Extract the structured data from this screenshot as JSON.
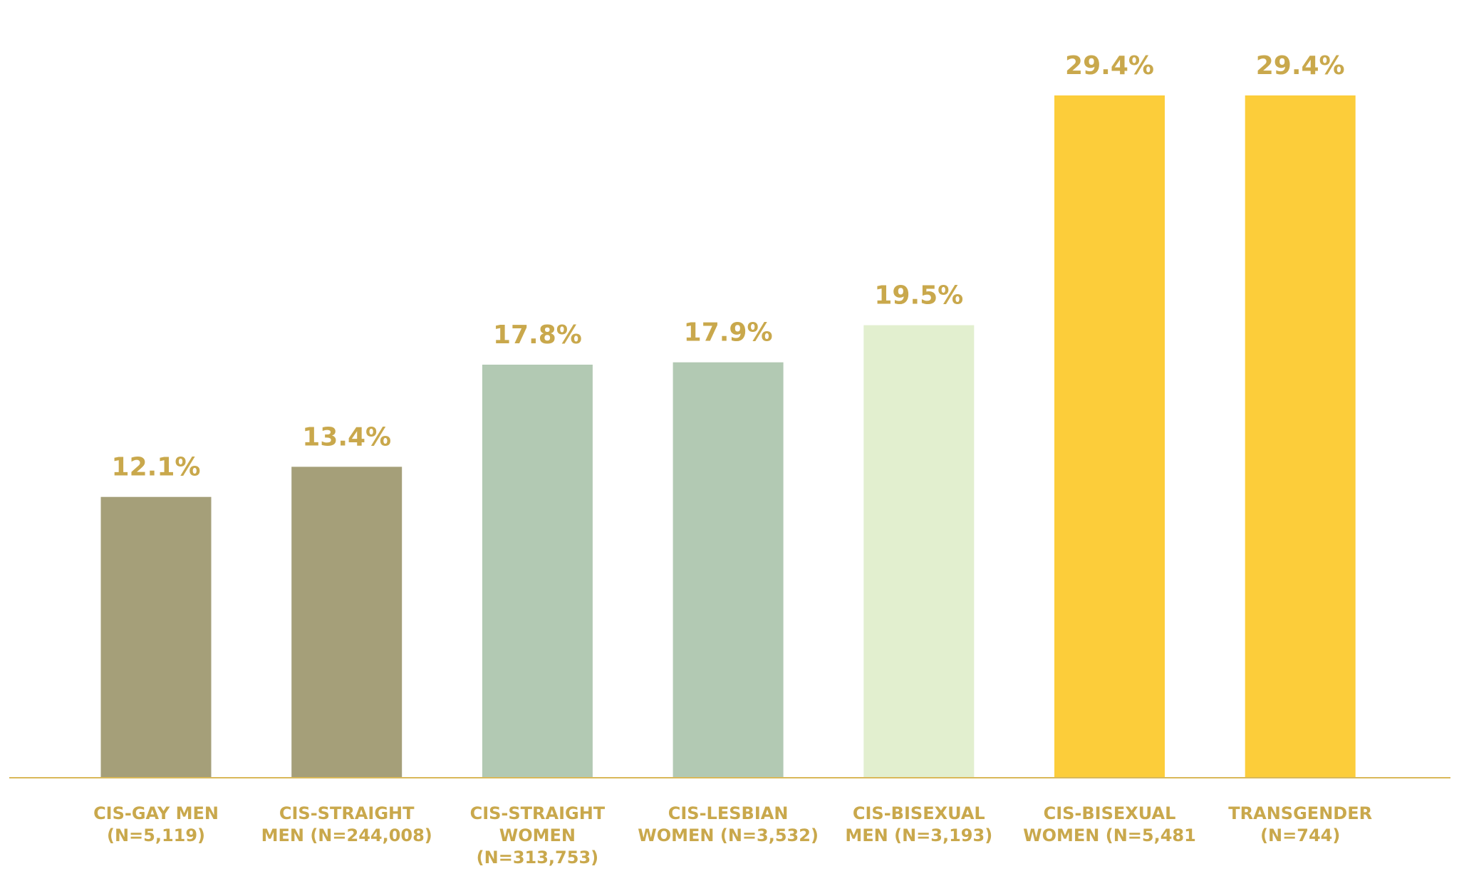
{
  "chart_data": {
    "type": "bar",
    "categories": [
      [
        "CIS-GAY MEN",
        "(N=5,119)"
      ],
      [
        "CIS-STRAIGHT",
        "MEN (N=244,008)"
      ],
      [
        "CIS-STRAIGHT",
        "WOMEN",
        "(N=313,753)"
      ],
      [
        "CIS-LESBIAN",
        "WOMEN (N=3,532)"
      ],
      [
        "CIS-BISEXUAL",
        "MEN (N=3,193)"
      ],
      [
        "CIS-BISEXUAL",
        "WOMEN (N=5,481"
      ],
      [
        "TRANSGENDER",
        "(N=744)"
      ]
    ],
    "values": [
      12.1,
      13.4,
      17.8,
      17.9,
      19.5,
      29.4,
      29.4
    ],
    "value_labels": [
      "12.1%",
      "13.4%",
      "17.8%",
      "17.9%",
      "19.5%",
      "29.4%",
      "29.4%"
    ],
    "bar_colors": [
      "#a59f79",
      "#a59f79",
      "#b2c9b3",
      "#b2c9b3",
      "#e2efcf",
      "#fccd3a",
      "#fccd3a"
    ],
    "title": "",
    "xlabel": "",
    "ylabel": "",
    "ylim": [
      0,
      29.4
    ],
    "grid": false,
    "legend": "none"
  },
  "colors": {
    "label": "#c9a84c",
    "axis": "#d9b85a",
    "background": "#ffffff"
  }
}
